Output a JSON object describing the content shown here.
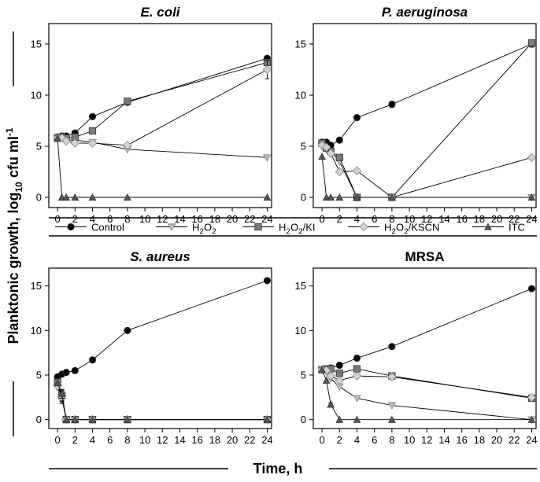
{
  "figure": {
    "ylabel_main": "Planktonic growth, log",
    "ylabel_sub": "10",
    "ylabel_unit": " cfu ml",
    "ylabel_sup": "-1",
    "xlabel": "Time, h"
  },
  "legend": [
    {
      "key": "control",
      "label": "Control",
      "sub": "",
      "after": "",
      "marker": "circle",
      "color": "#000000"
    },
    {
      "key": "h2o2",
      "label": "H",
      "sub": "2",
      "mid": "O",
      "sub2": "2",
      "after": "",
      "marker": "triangle-down",
      "color": "#bdbdbd"
    },
    {
      "key": "h2o2ki",
      "label": "H",
      "sub": "2",
      "mid": "O",
      "sub2": "2",
      "after": "/KI",
      "marker": "square",
      "color": "#7a7a7a"
    },
    {
      "key": "h2o2kscn",
      "label": "H",
      "sub": "2",
      "mid": "O",
      "sub2": "2",
      "after": "/KSCN",
      "marker": "diamond",
      "color": "#d2d2d2"
    },
    {
      "key": "itc",
      "label": "ITC",
      "sub": "",
      "after": "",
      "marker": "triangle-up",
      "color": "#555555"
    }
  ],
  "chart_data": [
    {
      "type": "line",
      "title": "E. coli",
      "italic": true,
      "x_ticks": [
        0,
        2,
        4,
        6,
        8,
        10,
        12,
        14,
        16,
        18,
        20,
        22,
        24
      ],
      "y_ticks": [
        0,
        5,
        10,
        15
      ],
      "ylim": [
        -1,
        17
      ],
      "xlim": [
        -1,
        24.5
      ],
      "series": [
        {
          "name": "Control",
          "x": [
            0,
            0.5,
            1,
            2,
            4,
            8,
            24
          ],
          "y": [
            5.9,
            6.0,
            6.0,
            6.3,
            7.9,
            9.3,
            13.6
          ],
          "err": [
            0,
            0,
            0,
            0,
            0,
            0,
            0
          ]
        },
        {
          "name": "H2O2",
          "x": [
            0,
            0.5,
            1,
            2,
            4,
            8,
            24
          ],
          "y": [
            5.8,
            5.8,
            5.6,
            5.6,
            5.4,
            4.7,
            3.9
          ],
          "err": [
            0,
            0,
            0,
            0,
            0,
            0,
            0
          ]
        },
        {
          "name": "H2O2/KI",
          "x": [
            0,
            0.5,
            1,
            2,
            4,
            8,
            24
          ],
          "y": [
            5.8,
            5.9,
            5.8,
            5.9,
            6.5,
            9.4,
            13.2
          ],
          "err": [
            0,
            0,
            0,
            0,
            0,
            0,
            0
          ]
        },
        {
          "name": "H2O2/KSCN",
          "x": [
            0,
            0.5,
            1,
            2,
            4,
            8,
            24
          ],
          "y": [
            5.8,
            5.8,
            5.5,
            5.3,
            5.3,
            5.1,
            12.5
          ],
          "err": [
            0,
            0,
            0,
            0,
            0,
            0,
            0.9
          ]
        },
        {
          "name": "ITC",
          "x": [
            0,
            0.5,
            1,
            2,
            4,
            8,
            24
          ],
          "y": [
            5.8,
            0,
            0,
            0,
            0,
            0,
            0
          ],
          "err": [
            0,
            0,
            0,
            0,
            0,
            0,
            0
          ]
        }
      ]
    },
    {
      "type": "line",
      "title": "P. aeruginosa",
      "italic": true,
      "x_ticks": [
        0,
        2,
        4,
        6,
        8,
        10,
        12,
        14,
        16,
        18,
        20,
        22,
        24
      ],
      "y_ticks": [
        0,
        5,
        10,
        15
      ],
      "ylim": [
        -1,
        17
      ],
      "xlim": [
        -1,
        24.5
      ],
      "series": [
        {
          "name": "Control",
          "x": [
            0,
            0.5,
            1,
            2,
            4,
            8,
            24
          ],
          "y": [
            5.4,
            5.4,
            5.1,
            5.6,
            7.8,
            9.1,
            15.0
          ],
          "err": [
            0,
            0,
            0,
            0,
            0,
            0.3,
            0.3
          ]
        },
        {
          "name": "H2O2",
          "x": [
            0,
            0.5,
            1,
            2,
            4,
            8,
            24
          ],
          "y": [
            5.0,
            4.7,
            4.5,
            3.5,
            0,
            0,
            0
          ],
          "err": [
            0,
            0,
            0,
            0,
            0,
            0,
            0
          ]
        },
        {
          "name": "H2O2/KI",
          "x": [
            0,
            0.5,
            1,
            2,
            4,
            8,
            24
          ],
          "y": [
            5.3,
            4.8,
            4.5,
            3.9,
            0,
            0,
            15.1
          ],
          "err": [
            0,
            0,
            0,
            0,
            0,
            0,
            0
          ]
        },
        {
          "name": "H2O2/KSCN",
          "x": [
            0,
            0.5,
            1,
            2,
            4,
            8,
            24
          ],
          "y": [
            5.1,
            4.9,
            4.3,
            2.5,
            2.6,
            0,
            3.9
          ],
          "err": [
            0,
            0,
            0,
            0,
            0,
            0,
            0
          ]
        },
        {
          "name": "ITC",
          "x": [
            0,
            0.5,
            1,
            2,
            4,
            8,
            24
          ],
          "y": [
            4.0,
            0,
            0,
            0,
            0,
            0,
            0
          ],
          "err": [
            0,
            0,
            0,
            0,
            0,
            0,
            0
          ]
        }
      ]
    },
    {
      "type": "line",
      "title": "S. aureus",
      "italic": true,
      "x_ticks": [
        0,
        2,
        4,
        6,
        8,
        10,
        12,
        14,
        16,
        18,
        20,
        22,
        24
      ],
      "y_ticks": [
        0,
        5,
        10,
        15
      ],
      "ylim": [
        -1,
        17
      ],
      "xlim": [
        -1,
        24.5
      ],
      "series": [
        {
          "name": "Control",
          "x": [
            0,
            0.5,
            1,
            2,
            4,
            8,
            24
          ],
          "y": [
            4.8,
            5.1,
            5.3,
            5.5,
            6.7,
            10.0,
            15.6
          ],
          "err": [
            0,
            0,
            0,
            0,
            0,
            0,
            0
          ]
        },
        {
          "name": "H2O2",
          "x": [
            0,
            0.5,
            1,
            2,
            4,
            8,
            24
          ],
          "y": [
            3.6,
            2.4,
            0,
            0,
            0,
            0,
            0
          ],
          "err": [
            0,
            0.6,
            0,
            0,
            0,
            0,
            0
          ]
        },
        {
          "name": "H2O2/KI",
          "x": [
            0,
            0.5,
            1,
            2,
            4,
            8,
            24
          ],
          "y": [
            4.2,
            2.7,
            0,
            0,
            0,
            0,
            0
          ],
          "err": [
            0,
            0.6,
            0,
            0,
            0,
            0,
            0
          ]
        },
        {
          "name": "H2O2/KSCN",
          "x": [
            0,
            0.5,
            1,
            2,
            4,
            8,
            24
          ],
          "y": [
            3.8,
            2.6,
            0,
            0,
            0,
            0,
            0
          ],
          "err": [
            0,
            0.6,
            0,
            0,
            0,
            0,
            0
          ]
        },
        {
          "name": "ITC",
          "x": [
            0,
            0.5,
            1,
            2,
            4,
            8,
            24
          ],
          "y": [
            4.1,
            2.9,
            0,
            0,
            0,
            0,
            0
          ],
          "err": [
            0,
            0.5,
            0,
            0,
            0,
            0,
            0
          ]
        }
      ]
    },
    {
      "type": "line",
      "title": "MRSA",
      "italic": false,
      "x_ticks": [
        0,
        2,
        4,
        6,
        8,
        10,
        12,
        14,
        16,
        18,
        20,
        22,
        24
      ],
      "y_ticks": [
        0,
        5,
        10,
        15
      ],
      "ylim": [
        -1,
        17
      ],
      "xlim": [
        -1,
        24.5
      ],
      "series": [
        {
          "name": "Control",
          "x": [
            0,
            0.5,
            1,
            2,
            4,
            8,
            24
          ],
          "y": [
            5.6,
            5.7,
            5.8,
            6.1,
            6.9,
            8.2,
            14.7
          ],
          "err": [
            0,
            0,
            0,
            0,
            0,
            0,
            0
          ]
        },
        {
          "name": "H2O2",
          "x": [
            0,
            0.5,
            1,
            2,
            4,
            8,
            24
          ],
          "y": [
            5.6,
            5.4,
            4.6,
            3.7,
            2.4,
            1.6,
            0
          ],
          "err": [
            0,
            0,
            0,
            0,
            0,
            0,
            0
          ]
        },
        {
          "name": "H2O2/KI",
          "x": [
            0,
            0.5,
            1,
            2,
            4,
            8,
            24
          ],
          "y": [
            5.6,
            5.7,
            5.7,
            5.2,
            5.7,
            4.9,
            2.4
          ],
          "err": [
            0,
            0,
            0,
            0,
            0.3,
            0,
            0
          ]
        },
        {
          "name": "H2O2/KSCN",
          "x": [
            0,
            0.5,
            1,
            2,
            4,
            8,
            24
          ],
          "y": [
            5.6,
            5.5,
            4.9,
            4.4,
            4.9,
            4.8,
            2.5
          ],
          "err": [
            0,
            0,
            0,
            0,
            0,
            0,
            0
          ]
        },
        {
          "name": "ITC",
          "x": [
            0,
            0.5,
            1,
            2,
            4,
            8,
            24
          ],
          "y": [
            5.6,
            4.4,
            1.7,
            0,
            0,
            0,
            0
          ],
          "err": [
            0,
            0,
            0.2,
            0,
            0,
            0,
            0
          ]
        }
      ]
    }
  ]
}
